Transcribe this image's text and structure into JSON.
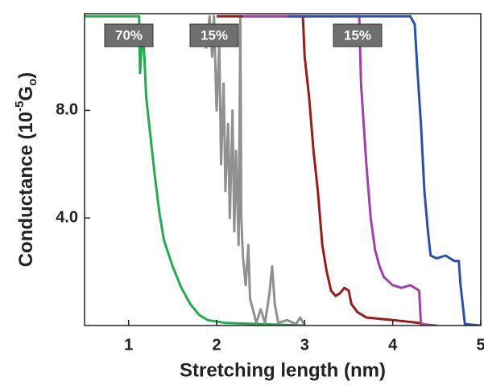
{
  "chart_data": {
    "type": "line",
    "x_label": "Stretching length (nm)",
    "y_label_parts": [
      "Conductance (10",
      "-5",
      "G",
      "o",
      ")"
    ],
    "annotations": [
      "70%",
      "15%",
      "15%"
    ],
    "xlim": [
      0.5,
      5
    ],
    "xticks": [
      1,
      2,
      3,
      4,
      5
    ],
    "ylim": [
      0,
      11.6
    ],
    "yticks": [
      {
        "value": 4,
        "label": "4.0"
      },
      {
        "value": 8,
        "label": "8.0"
      }
    ],
    "series": [
      {
        "color": "#1fae4f",
        "x": [
          0.5,
          1.12,
          1.13,
          1.16,
          1.18,
          1.2,
          1.25,
          1.3,
          1.35,
          1.4,
          1.5,
          1.6,
          1.7,
          1.8,
          1.9,
          2.1,
          2.5,
          3.0
        ],
        "values": [
          11.5,
          11.5,
          9.4,
          11.0,
          10.0,
          8.5,
          7.0,
          5.5,
          4.2,
          3.2,
          2.2,
          1.4,
          0.8,
          0.4,
          0.2,
          0.1,
          0.05,
          0.0
        ]
      },
      {
        "color": "#909090",
        "x": [
          1.88,
          1.92,
          1.95,
          1.97,
          2.0,
          2.03,
          2.05,
          2.08,
          2.1,
          2.13,
          2.15,
          2.18,
          2.2,
          2.22,
          2.25,
          2.27,
          2.28,
          2.3,
          2.33,
          2.36,
          2.38,
          2.42,
          2.45,
          2.5,
          2.55,
          2.6,
          2.63,
          2.66,
          2.7,
          2.8,
          2.9,
          2.95,
          3.0
        ],
        "values": [
          10.3,
          11.5,
          10.0,
          11.5,
          8.0,
          10.5,
          6.0,
          9.0,
          5.0,
          7.5,
          4.0,
          8.0,
          3.5,
          6.5,
          3.0,
          11.5,
          4.0,
          2.5,
          1.5,
          3.0,
          1.0,
          0.5,
          0.1,
          0.6,
          0.1,
          1.2,
          2.2,
          0.8,
          0.1,
          0.2,
          0.05,
          0.3,
          0.0
        ]
      },
      {
        "color": "#9b1b1b",
        "x": [
          2.0,
          2.98,
          3.0,
          3.05,
          3.1,
          3.15,
          3.2,
          3.25,
          3.3,
          3.35,
          3.4,
          3.45,
          3.5,
          3.53,
          3.6,
          3.7,
          4.0,
          4.3,
          4.35
        ],
        "values": [
          11.5,
          11.5,
          10.0,
          8.5,
          6.5,
          5.0,
          3.0,
          2.0,
          1.3,
          1.1,
          1.2,
          1.4,
          1.3,
          0.8,
          0.5,
          0.3,
          0.2,
          0.1,
          0.05
        ]
      },
      {
        "color": "#a040a8",
        "x": [
          2.3,
          3.62,
          3.64,
          3.7,
          3.75,
          3.8,
          3.85,
          3.9,
          4.0,
          4.1,
          4.2,
          4.3,
          4.32,
          4.5
        ],
        "values": [
          11.5,
          11.5,
          9.0,
          6.0,
          4.0,
          2.8,
          2.2,
          1.8,
          1.5,
          1.4,
          1.5,
          1.3,
          0.05,
          0.0
        ]
      },
      {
        "color": "#2a4fb0",
        "x": [
          2.8,
          4.2,
          4.25,
          4.28,
          4.32,
          4.36,
          4.4,
          4.43,
          4.5,
          4.6,
          4.7,
          4.75,
          4.77,
          4.82,
          5.0
        ],
        "values": [
          11.5,
          11.5,
          11.2,
          9.5,
          7.5,
          5.0,
          3.5,
          2.6,
          2.5,
          2.6,
          2.4,
          2.4,
          1.5,
          0.05,
          0.0
        ]
      }
    ]
  }
}
